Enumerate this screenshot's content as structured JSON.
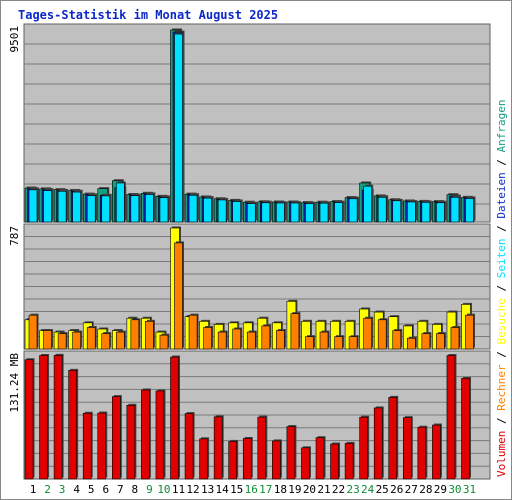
{
  "chart_data": {
    "type": "bar",
    "title": "Tages-Statistik im Monat August 2025",
    "categories": [
      "1",
      "2",
      "3",
      "4",
      "5",
      "6",
      "7",
      "8",
      "9",
      "10",
      "11",
      "12",
      "13",
      "14",
      "15",
      "16",
      "17",
      "18",
      "19",
      "20",
      "21",
      "22",
      "23",
      "24",
      "25",
      "26",
      "27",
      "28",
      "29",
      "30",
      "31"
    ],
    "weekend_days": [
      "2",
      "3",
      "9",
      "10",
      "16",
      "17",
      "23",
      "24",
      "30",
      "31"
    ],
    "colors": {
      "anfragen": "#169e80",
      "dateien": "#0b29c9",
      "seiten": "#00e0ff",
      "besuche": "#ffff00",
      "rechner": "#ff8000",
      "volumen": "#e00000",
      "weekday_label": "#000000",
      "weekend_label": "#0e8c34",
      "title": "#0b29c9",
      "plot_bg": "#c0c0c0"
    },
    "panels": [
      {
        "max_label": "9501",
        "ymax": 9501,
        "series": [
          {
            "name": "Anfragen",
            "values": [
              1680,
              1640,
              1600,
              1560,
              1380,
              1650,
              2040,
              1360,
              1420,
              1270,
              9501,
              1380,
              1240,
              1150,
              1070,
              980,
              1000,
              990,
              990,
              960,
              980,
              1010,
              1210,
              1930,
              1290,
              1100,
              1040,
              1020,
              1010,
              1350,
              1220
            ]
          },
          {
            "name": "Dateien",
            "values": [
              1640,
              1600,
              1560,
              1520,
              1340,
              1320,
              1700,
              1330,
              1390,
              1240,
              9400,
              1350,
              1210,
              1120,
              1040,
              930,
              980,
              960,
              960,
              930,
              950,
              980,
              1180,
              1580,
              1250,
              1070,
              1010,
              990,
              980,
              1280,
              1190
            ]
          },
          {
            "name": "Seiten",
            "values": [
              1590,
              1550,
              1520,
              1480,
              1300,
              1290,
              1930,
              1300,
              1360,
              1200,
              9300,
              1320,
              1180,
              1090,
              1010,
              910,
              950,
              940,
              940,
              910,
              930,
              960,
              1150,
              1770,
              1220,
              1050,
              990,
              970,
              950,
              1220,
              1160
            ]
          }
        ]
      },
      {
        "max_label": "787",
        "ymax": 787,
        "series": [
          {
            "name": "Besuche",
            "values": [
              190,
              120,
              110,
              120,
              170,
              130,
              120,
              200,
              200,
              110,
              787,
              210,
              180,
              160,
              170,
              170,
              200,
              170,
              310,
              180,
              180,
              180,
              180,
              260,
              240,
              210,
              150,
              180,
              160,
              240,
              290
            ]
          },
          {
            "name": "Rechner",
            "values": [
              220,
              120,
              100,
              110,
              140,
              100,
              110,
              190,
              180,
              90,
              690,
              220,
              140,
              110,
              130,
              110,
              150,
              120,
              230,
              80,
              110,
              80,
              80,
              200,
              190,
              120,
              70,
              100,
              100,
              140,
              220
            ]
          }
        ]
      },
      {
        "max_label": "131.24 MB",
        "ymax": 131.24,
        "series": [
          {
            "name": "Volumen",
            "values": [
              126.2,
              130.7,
              130.9,
              115.0,
              69.6,
              69.8,
              87.2,
              78.0,
              94.2,
              93.2,
              129.1,
              69.2,
              42.5,
              65.8,
              39.8,
              42.9,
              65.5,
              40.3,
              55.5,
              33.0,
              43.7,
              37.0,
              37.7,
              65.4,
              75.2,
              86.4,
              64.9,
              54.8,
              57.1,
              130.7,
              106.5
            ]
          }
        ]
      }
    ],
    "right_legend": [
      {
        "text": "Volumen",
        "color": "#e00000"
      },
      {
        "text": " / ",
        "color": "#000000"
      },
      {
        "text": "Rechner",
        "color": "#ff8000"
      },
      {
        "text": " / ",
        "color": "#000000"
      },
      {
        "text": "Besuche",
        "color": "#ffff00"
      },
      {
        "text": " / ",
        "color": "#000000"
      },
      {
        "text": "Seiten",
        "color": "#00e0ff"
      },
      {
        "text": " / ",
        "color": "#000000"
      },
      {
        "text": "Dateien",
        "color": "#0b29c9"
      },
      {
        "text": " / ",
        "color": "#000000"
      },
      {
        "text": "Anfragen",
        "color": "#169e80"
      }
    ]
  }
}
